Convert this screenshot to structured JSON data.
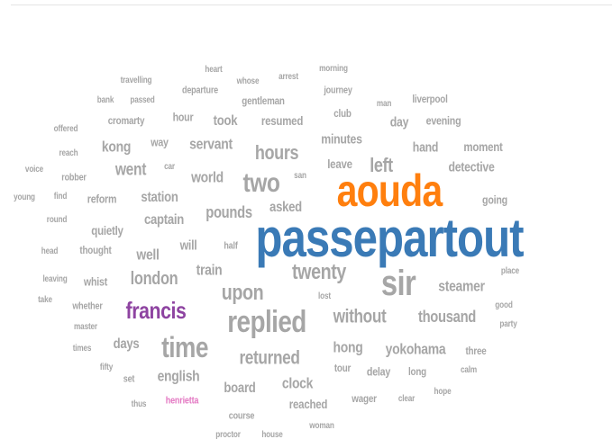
{
  "palette": {
    "default": "#a6a6a6",
    "orange": "#ff7f0e",
    "blue": "#3a7ab6",
    "purple": "#8e44a1",
    "pink": "#e377c2"
  },
  "words": [
    {
      "text": "heart",
      "color": "default"
    },
    {
      "text": "whose",
      "color": "default"
    },
    {
      "text": "arrest",
      "color": "default"
    },
    {
      "text": "morning",
      "color": "default"
    },
    {
      "text": "travelling",
      "color": "default"
    },
    {
      "text": "departure",
      "color": "default"
    },
    {
      "text": "journey",
      "color": "default"
    },
    {
      "text": "bank",
      "color": "default"
    },
    {
      "text": "passed",
      "color": "default"
    },
    {
      "text": "gentleman",
      "color": "default"
    },
    {
      "text": "man",
      "color": "default"
    },
    {
      "text": "liverpool",
      "color": "default"
    },
    {
      "text": "club",
      "color": "default"
    },
    {
      "text": "cromarty",
      "color": "default"
    },
    {
      "text": "hour",
      "color": "default"
    },
    {
      "text": "took",
      "color": "default"
    },
    {
      "text": "resumed",
      "color": "default"
    },
    {
      "text": "day",
      "color": "default"
    },
    {
      "text": "evening",
      "color": "default"
    },
    {
      "text": "offered",
      "color": "default"
    },
    {
      "text": "minutes",
      "color": "default"
    },
    {
      "text": "kong",
      "color": "default"
    },
    {
      "text": "way",
      "color": "default"
    },
    {
      "text": "servant",
      "color": "default"
    },
    {
      "text": "hand",
      "color": "default"
    },
    {
      "text": "moment",
      "color": "default"
    },
    {
      "text": "reach",
      "color": "default"
    },
    {
      "text": "hours",
      "color": "default"
    },
    {
      "text": "leave",
      "color": "default"
    },
    {
      "text": "left",
      "color": "default"
    },
    {
      "text": "voice",
      "color": "default"
    },
    {
      "text": "went",
      "color": "default"
    },
    {
      "text": "car",
      "color": "default"
    },
    {
      "text": "detective",
      "color": "default"
    },
    {
      "text": "robber",
      "color": "default"
    },
    {
      "text": "world",
      "color": "default"
    },
    {
      "text": "two",
      "color": "default"
    },
    {
      "text": "san",
      "color": "default"
    },
    {
      "text": "aouda",
      "color": "orange"
    },
    {
      "text": "young",
      "color": "default"
    },
    {
      "text": "find",
      "color": "default"
    },
    {
      "text": "reform",
      "color": "default"
    },
    {
      "text": "station",
      "color": "default"
    },
    {
      "text": "going",
      "color": "default"
    },
    {
      "text": "captain",
      "color": "default"
    },
    {
      "text": "pounds",
      "color": "default"
    },
    {
      "text": "asked",
      "color": "default"
    },
    {
      "text": "round",
      "color": "default"
    },
    {
      "text": "quietly",
      "color": "default"
    },
    {
      "text": "passepartout",
      "color": "blue"
    },
    {
      "text": "will",
      "color": "default"
    },
    {
      "text": "half",
      "color": "default"
    },
    {
      "text": "head",
      "color": "default"
    },
    {
      "text": "thought",
      "color": "default"
    },
    {
      "text": "well",
      "color": "default"
    },
    {
      "text": "train",
      "color": "default"
    },
    {
      "text": "twenty",
      "color": "default"
    },
    {
      "text": "place",
      "color": "default"
    },
    {
      "text": "leaving",
      "color": "default"
    },
    {
      "text": "whist",
      "color": "default"
    },
    {
      "text": "london",
      "color": "default"
    },
    {
      "text": "sir",
      "color": "default"
    },
    {
      "text": "steamer",
      "color": "default"
    },
    {
      "text": "take",
      "color": "default"
    },
    {
      "text": "upon",
      "color": "default"
    },
    {
      "text": "lost",
      "color": "default"
    },
    {
      "text": "whether",
      "color": "default"
    },
    {
      "text": "francis",
      "color": "purple"
    },
    {
      "text": "good",
      "color": "default"
    },
    {
      "text": "without",
      "color": "default"
    },
    {
      "text": "thousand",
      "color": "default"
    },
    {
      "text": "party",
      "color": "default"
    },
    {
      "text": "master",
      "color": "default"
    },
    {
      "text": "replied",
      "color": "default"
    },
    {
      "text": "days",
      "color": "default"
    },
    {
      "text": "time",
      "color": "default"
    },
    {
      "text": "times",
      "color": "default"
    },
    {
      "text": "hong",
      "color": "default"
    },
    {
      "text": "yokohama",
      "color": "default"
    },
    {
      "text": "three",
      "color": "default"
    },
    {
      "text": "returned",
      "color": "default"
    },
    {
      "text": "fifty",
      "color": "default"
    },
    {
      "text": "english",
      "color": "default"
    },
    {
      "text": "tour",
      "color": "default"
    },
    {
      "text": "delay",
      "color": "default"
    },
    {
      "text": "long",
      "color": "default"
    },
    {
      "text": "calm",
      "color": "default"
    },
    {
      "text": "set",
      "color": "default"
    },
    {
      "text": "clock",
      "color": "default"
    },
    {
      "text": "board",
      "color": "default"
    },
    {
      "text": "hope",
      "color": "default"
    },
    {
      "text": "thus",
      "color": "default"
    },
    {
      "text": "henrietta",
      "color": "pink"
    },
    {
      "text": "reached",
      "color": "default"
    },
    {
      "text": "wager",
      "color": "default"
    },
    {
      "text": "clear",
      "color": "default"
    },
    {
      "text": "course",
      "color": "default"
    },
    {
      "text": "woman",
      "color": "default"
    },
    {
      "text": "proctor",
      "color": "default"
    },
    {
      "text": "house",
      "color": "default"
    }
  ]
}
